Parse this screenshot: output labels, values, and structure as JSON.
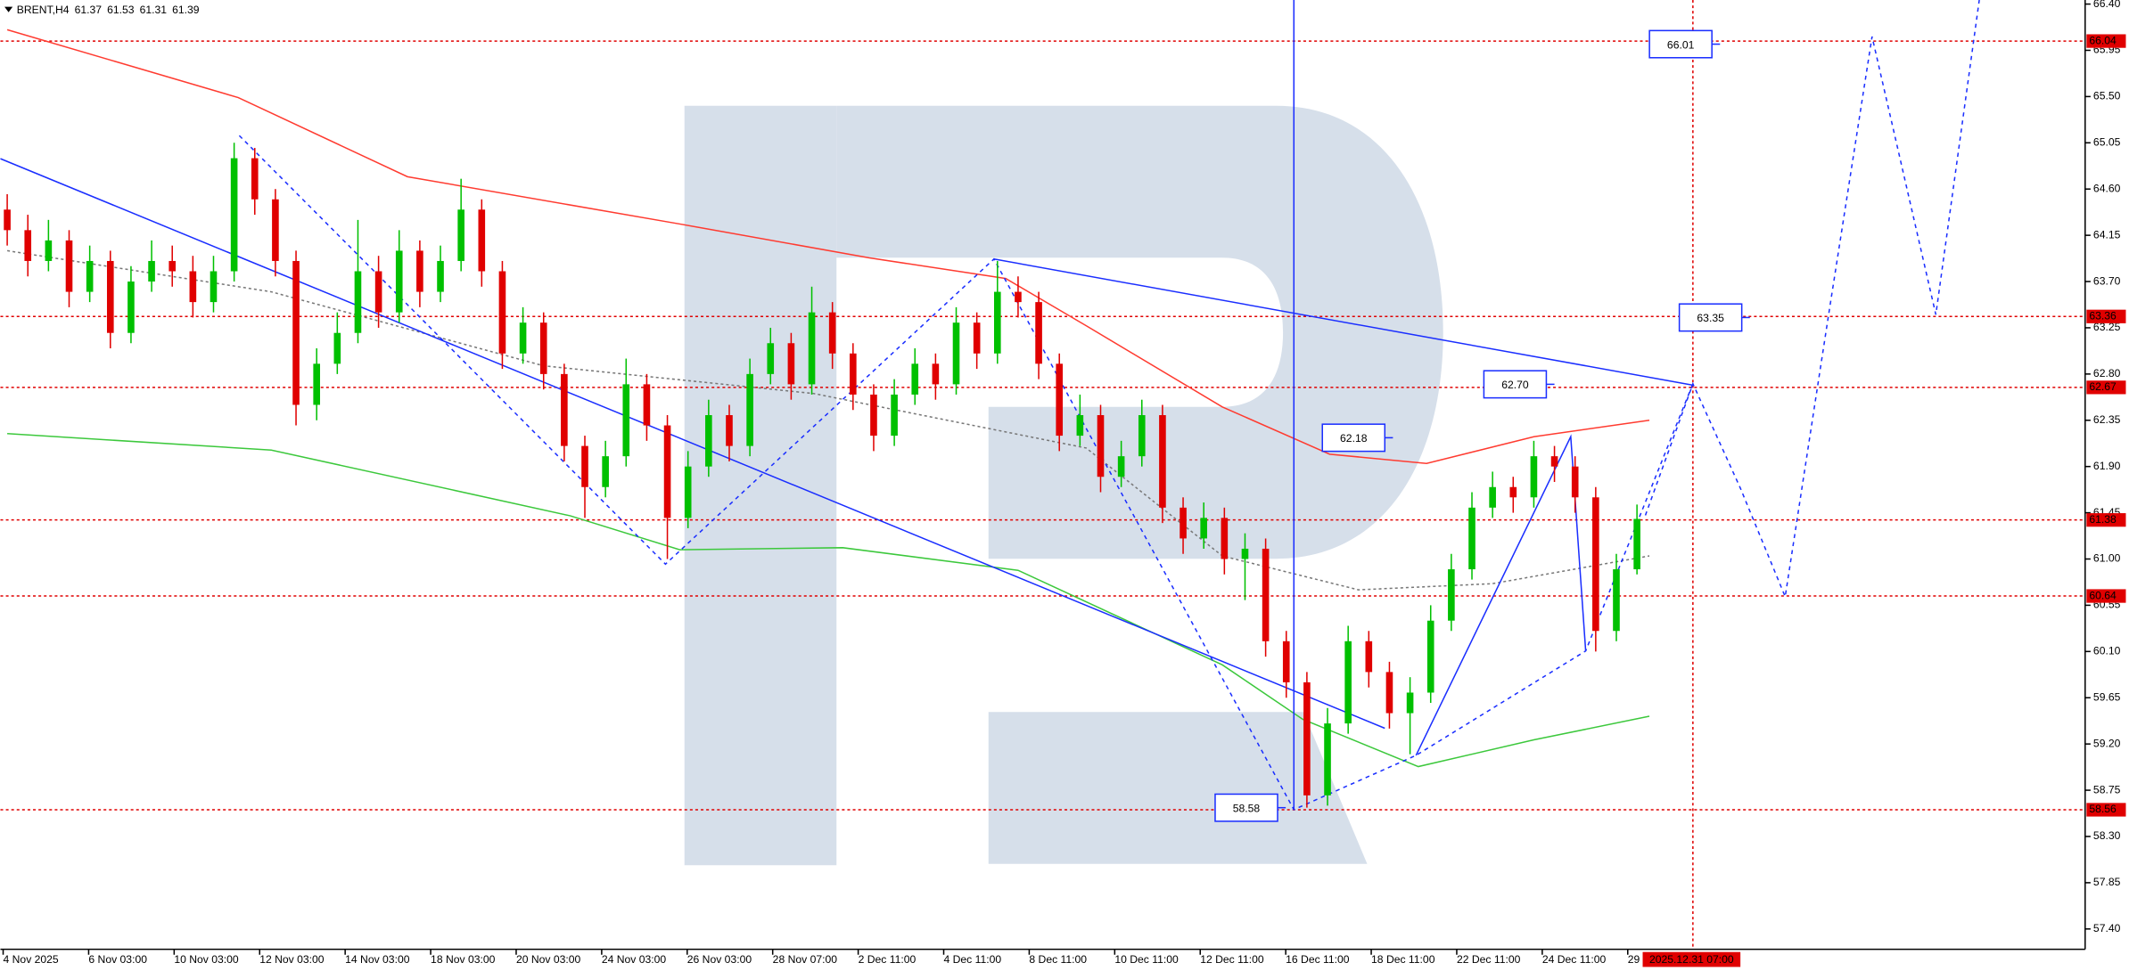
{
  "chart_data": {
    "type": "candlestick",
    "header": {
      "symbol": "BRENT,H4",
      "ohlc": [
        61.37,
        61.53,
        61.31,
        61.39
      ]
    },
    "categories": [
      "4 Nov 2025",
      "6 Nov 03:00",
      "10 Nov 03:00",
      "12 Nov 03:00",
      "14 Nov 03:00",
      "18 Nov 03:00",
      "20 Nov 03:00",
      "24 Nov 03:00",
      "26 Nov 03:00",
      "28 Nov 07:00",
      "2 Dec 11:00",
      "4 Dec 11:00",
      "8 Dec 11:00",
      "10 Dec 11:00",
      "12 Dec 11:00",
      "16 Dec 11:00",
      "18 Dec 11:00",
      "22 Dec 11:00",
      "24 Dec 11:00",
      "29"
    ],
    "cursor_time": "2025.12.31 07:00",
    "open": [
      64.4,
      64.2,
      63.9,
      64.1,
      63.6,
      63.9,
      63.2,
      63.7,
      63.9,
      63.8,
      63.5,
      63.8,
      64.9,
      64.5,
      63.9,
      62.5,
      62.9,
      63.2,
      63.8,
      63.4,
      64.0,
      63.6,
      63.9,
      64.4,
      63.8,
      63.0,
      63.3,
      62.8,
      62.1,
      61.7,
      62.0,
      62.7,
      62.3,
      61.4,
      61.9,
      62.4,
      62.1,
      62.8,
      63.1,
      62.7,
      63.4,
      63.0,
      62.6,
      62.2,
      62.6,
      62.9,
      62.7,
      63.3,
      63.0,
      63.6,
      63.5,
      62.9,
      62.2,
      62.4,
      61.8,
      62.0,
      62.4,
      61.5,
      61.2,
      61.4,
      61.0,
      61.1,
      60.2,
      59.8,
      58.7,
      59.4,
      60.2,
      59.9,
      59.5,
      59.7,
      60.4,
      60.9,
      61.5,
      61.7,
      61.6,
      62.0,
      61.9,
      61.6,
      60.3,
      60.9
    ],
    "high": [
      64.55,
      64.35,
      64.3,
      64.2,
      64.05,
      64.0,
      63.85,
      64.1,
      64.05,
      63.95,
      63.95,
      65.05,
      65.0,
      64.6,
      64.0,
      63.05,
      63.4,
      64.3,
      63.95,
      64.2,
      64.1,
      64.05,
      64.7,
      64.5,
      63.9,
      63.45,
      63.4,
      62.9,
      62.2,
      62.15,
      62.95,
      62.8,
      62.4,
      62.05,
      62.55,
      62.5,
      62.95,
      63.25,
      63.2,
      63.65,
      63.5,
      63.1,
      62.7,
      62.75,
      63.05,
      63.0,
      63.45,
      63.4,
      63.9,
      63.75,
      63.6,
      63.0,
      62.6,
      62.5,
      62.15,
      62.55,
      62.5,
      61.6,
      61.55,
      61.5,
      61.25,
      61.2,
      60.3,
      59.9,
      59.55,
      60.35,
      60.3,
      60.0,
      59.85,
      60.55,
      61.05,
      61.65,
      61.85,
      61.8,
      62.15,
      62.1,
      62.0,
      61.7,
      61.05,
      61.53
    ],
    "low": [
      64.05,
      63.75,
      63.8,
      63.45,
      63.5,
      63.05,
      63.1,
      63.6,
      63.65,
      63.35,
      63.4,
      63.7,
      64.35,
      63.75,
      62.3,
      62.35,
      62.8,
      63.1,
      63.25,
      63.3,
      63.45,
      63.5,
      63.8,
      63.65,
      62.85,
      62.9,
      62.65,
      61.95,
      61.4,
      61.6,
      61.9,
      62.15,
      61.0,
      61.3,
      61.8,
      61.95,
      62.0,
      62.7,
      62.55,
      62.6,
      62.85,
      62.45,
      62.05,
      62.1,
      62.5,
      62.55,
      62.6,
      62.85,
      62.9,
      63.35,
      62.75,
      62.05,
      62.1,
      61.65,
      61.7,
      61.9,
      61.35,
      61.05,
      61.1,
      60.85,
      60.6,
      60.05,
      59.65,
      58.58,
      58.6,
      59.3,
      59.75,
      59.35,
      59.1,
      59.6,
      60.3,
      60.8,
      61.4,
      61.45,
      61.5,
      61.75,
      61.45,
      60.1,
      60.2,
      60.85
    ],
    "close": [
      64.2,
      63.9,
      64.1,
      63.6,
      63.9,
      63.2,
      63.7,
      63.9,
      63.8,
      63.5,
      63.8,
      64.9,
      64.5,
      63.9,
      62.5,
      62.9,
      63.2,
      63.8,
      63.4,
      64.0,
      63.6,
      63.9,
      64.4,
      63.8,
      63.0,
      63.3,
      62.8,
      62.1,
      61.7,
      62.0,
      62.7,
      62.3,
      61.4,
      61.9,
      62.4,
      62.1,
      62.8,
      63.1,
      62.7,
      63.4,
      63.0,
      62.6,
      62.2,
      62.6,
      62.9,
      62.7,
      63.3,
      63.0,
      63.6,
      63.5,
      62.9,
      62.2,
      62.4,
      61.8,
      62.0,
      62.4,
      61.5,
      61.2,
      61.4,
      61.0,
      61.1,
      60.2,
      59.8,
      58.7,
      59.4,
      60.2,
      59.9,
      59.5,
      59.7,
      60.4,
      60.9,
      61.5,
      61.7,
      61.6,
      62.0,
      61.9,
      61.6,
      60.3,
      60.9,
      61.39
    ],
    "up_color": "#00c000",
    "down_color": "#e00000",
    "lines": [
      {
        "color": "#ff3b30",
        "dotted": false,
        "x": [
          0,
          11.2,
          19.4,
          32.6,
          41.8,
          48.4,
          52.3,
          58.9,
          64.1,
          68.8,
          74.0,
          79.6
        ],
        "values": [
          66.15,
          65.49,
          64.72,
          64.26,
          63.93,
          63.73,
          63.27,
          62.48,
          62.02,
          61.93,
          62.19,
          62.35
        ]
      },
      {
        "color": "#3cc83c",
        "dotted": false,
        "x": [
          0,
          12.8,
          27.3,
          32.6,
          40.5,
          49.0,
          58.9,
          62.8,
          68.4,
          74.0,
          79.6
        ],
        "values": [
          62.22,
          62.06,
          61.42,
          61.09,
          61.11,
          60.89,
          59.97,
          59.44,
          58.98,
          59.24,
          59.47
        ]
      },
      {
        "color": "#777777",
        "dotted": true,
        "x": [
          0,
          12.8,
          26.0,
          39.1,
          52.3,
          58.9,
          65.5,
          72.0,
          79.6
        ],
        "values": [
          64.0,
          63.6,
          62.88,
          62.61,
          62.08,
          61.03,
          60.7,
          60.76,
          61.03
        ]
      }
    ],
    "levels": [
      66.04,
      63.36,
      62.67,
      61.38,
      60.64,
      58.56
    ],
    "annotations": [
      {
        "value": 66.01,
        "label": "66.01"
      },
      {
        "value": 63.35,
        "label": "63.35"
      },
      {
        "value": 62.7,
        "label": "62.70"
      },
      {
        "value": 62.18,
        "label": "62.18"
      },
      {
        "value": 58.58,
        "label": "58.58"
      }
    ],
    "ylim": [
      57.4,
      66.4
    ],
    "yticks": [
      {
        "value": 66.4,
        "label": "66.40"
      },
      {
        "value": 65.95,
        "label": "65.95"
      },
      {
        "value": 65.5,
        "label": "65.50"
      },
      {
        "value": 65.05,
        "label": "65.05"
      },
      {
        "value": 64.6,
        "label": "64.60"
      },
      {
        "value": 64.15,
        "label": "64.15"
      },
      {
        "value": 63.7,
        "label": "63.70"
      },
      {
        "value": 63.25,
        "label": "63.25"
      },
      {
        "value": 62.8,
        "label": "62.80"
      },
      {
        "value": 62.35,
        "label": "62.35"
      },
      {
        "value": 61.9,
        "label": "61.90"
      },
      {
        "value": 61.45,
        "label": "61.45"
      },
      {
        "value": 61.0,
        "label": "61.00"
      },
      {
        "value": 60.55,
        "label": "60.55"
      },
      {
        "value": 60.1,
        "label": "60.10"
      },
      {
        "value": 59.65,
        "label": "59.65"
      },
      {
        "value": 59.2,
        "label": "59.20"
      },
      {
        "value": 58.75,
        "label": "58.75"
      },
      {
        "value": 58.3,
        "label": "58.30"
      },
      {
        "value": 57.85,
        "label": "57.85"
      },
      {
        "value": 57.4,
        "label": "57.40"
      }
    ]
  }
}
